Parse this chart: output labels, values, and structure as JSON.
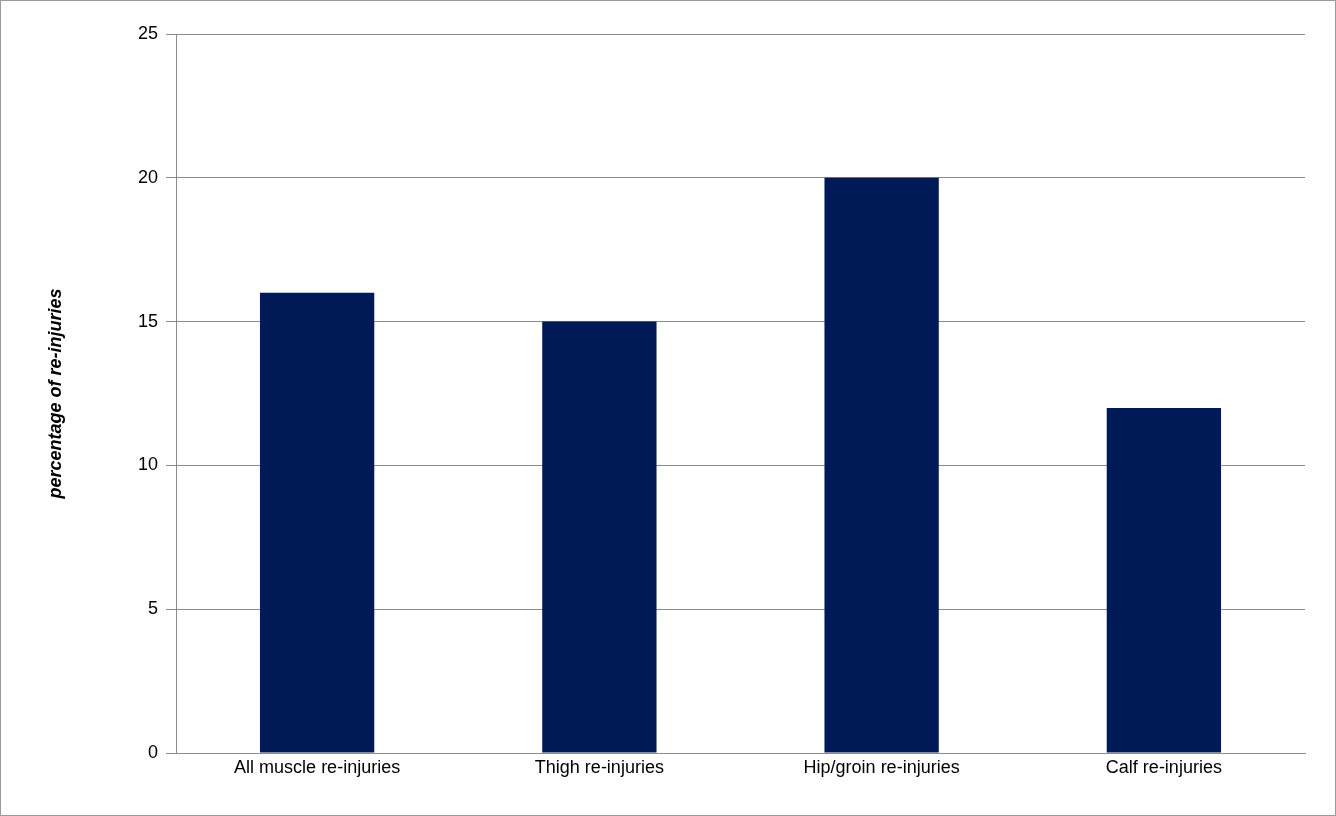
{
  "chart_data": {
    "type": "bar",
    "ylabel": "percentage of re-injuries",
    "categories": [
      "All muscle re-injuries",
      "Thigh re-injuries",
      "Hip/groin re-injuries",
      "Calf re-injuries"
    ],
    "values": [
      16,
      15,
      20,
      12
    ],
    "color": "#001a57",
    "ylim": [
      0,
      25
    ],
    "yticks": [
      0,
      5,
      10,
      15,
      20,
      25
    ],
    "grid": "y",
    "legend": false
  }
}
